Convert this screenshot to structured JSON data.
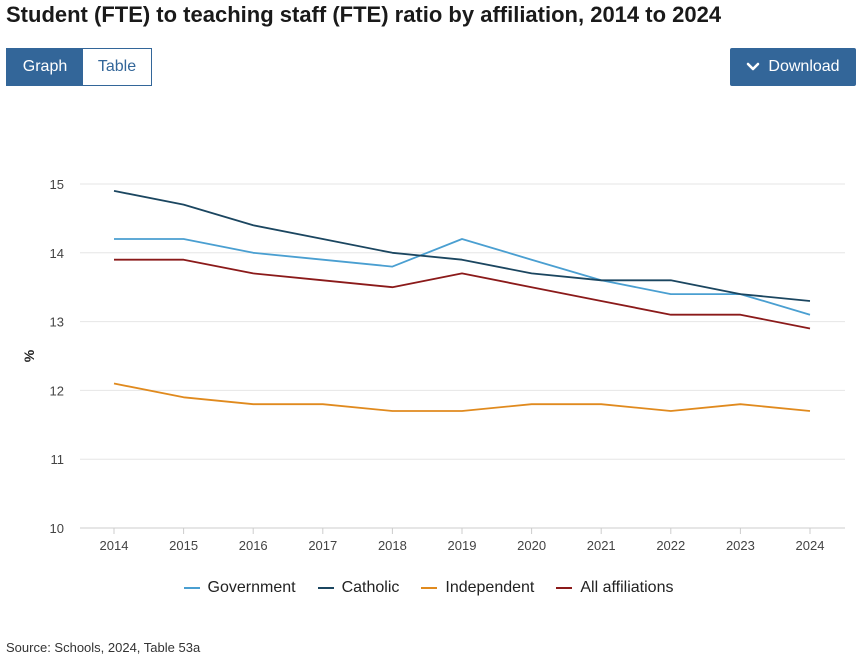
{
  "header": {
    "title": "Student (FTE) to teaching staff (FTE) ratio by affiliation, 2014 to 2024"
  },
  "toolbar": {
    "graph_label": "Graph",
    "table_label": "Table",
    "download_label": "Download",
    "download_icon": "chevron-down-icon"
  },
  "colors": {
    "accent": "#336699",
    "government": "#4a9fd1",
    "catholic": "#1b4660",
    "independent": "#e08a1e",
    "all": "#8b1a1a",
    "grid": "#e6e6e6"
  },
  "chart_data": {
    "type": "line",
    "title": "Student (FTE) to teaching staff (FTE) ratio by affiliation, 2014 to 2024",
    "xlabel": "",
    "ylabel": "%",
    "ylim": [
      10,
      15
    ],
    "yticks": [
      10,
      11,
      12,
      13,
      14,
      15
    ],
    "grid": true,
    "legend_position": "bottom-center",
    "categories": [
      "2014",
      "2015",
      "2016",
      "2017",
      "2018",
      "2019",
      "2020",
      "2021",
      "2022",
      "2023",
      "2024"
    ],
    "series": [
      {
        "name": "Government",
        "color": "#4a9fd1",
        "values": [
          14.2,
          14.2,
          14.0,
          13.9,
          13.8,
          14.2,
          13.9,
          13.6,
          13.4,
          13.4,
          13.1
        ]
      },
      {
        "name": "Catholic",
        "color": "#1b4660",
        "values": [
          14.9,
          14.7,
          14.4,
          14.2,
          14.0,
          13.9,
          13.7,
          13.6,
          13.6,
          13.4,
          13.3
        ]
      },
      {
        "name": "Independent",
        "color": "#e08a1e",
        "values": [
          12.1,
          11.9,
          11.8,
          11.8,
          11.7,
          11.7,
          11.8,
          11.8,
          11.7,
          11.8,
          11.7
        ]
      },
      {
        "name": "All affiliations",
        "color": "#8b1a1a",
        "values": [
          13.9,
          13.9,
          13.7,
          13.6,
          13.5,
          13.7,
          13.5,
          13.3,
          13.1,
          13.1,
          12.9
        ]
      }
    ]
  },
  "footer": {
    "source": "Source: Schools, 2024, Table 53a"
  }
}
